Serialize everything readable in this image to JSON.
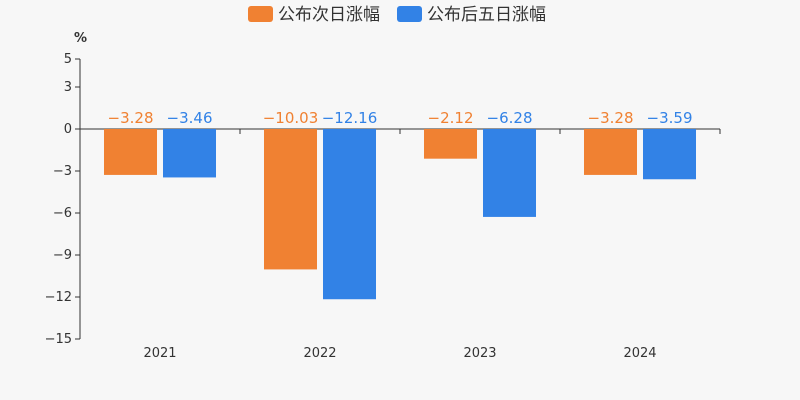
{
  "colors": {
    "series_0": "#f08132",
    "series_1": "#3282e6",
    "axis": "#333333",
    "background": "#f7f7f7"
  },
  "chart_data": {
    "type": "bar",
    "title": "",
    "xlabel": "",
    "ylabel": "%",
    "ylim": [
      -15,
      5
    ],
    "yticks": [
      5,
      3,
      0,
      -3,
      -6,
      -9,
      -12,
      -15
    ],
    "ytick_labels": [
      "5",
      "3",
      "0",
      "−3",
      "−6",
      "−9",
      "−12",
      "−15"
    ],
    "categories": [
      "2021",
      "2022",
      "2023",
      "2024"
    ],
    "grid": false,
    "legend_position": "top-center",
    "series": [
      {
        "name": "公布次日涨幅",
        "values": [
          -3.28,
          -10.03,
          -2.12,
          -3.28
        ],
        "labels": [
          "−3.28",
          "−10.03",
          "−2.12",
          "−3.28"
        ]
      },
      {
        "name": "公布后五日涨幅",
        "values": [
          -3.46,
          -12.16,
          -6.28,
          -3.59
        ],
        "labels": [
          "−3.46",
          "−12.16",
          "−6.28",
          "−3.59"
        ]
      }
    ]
  }
}
